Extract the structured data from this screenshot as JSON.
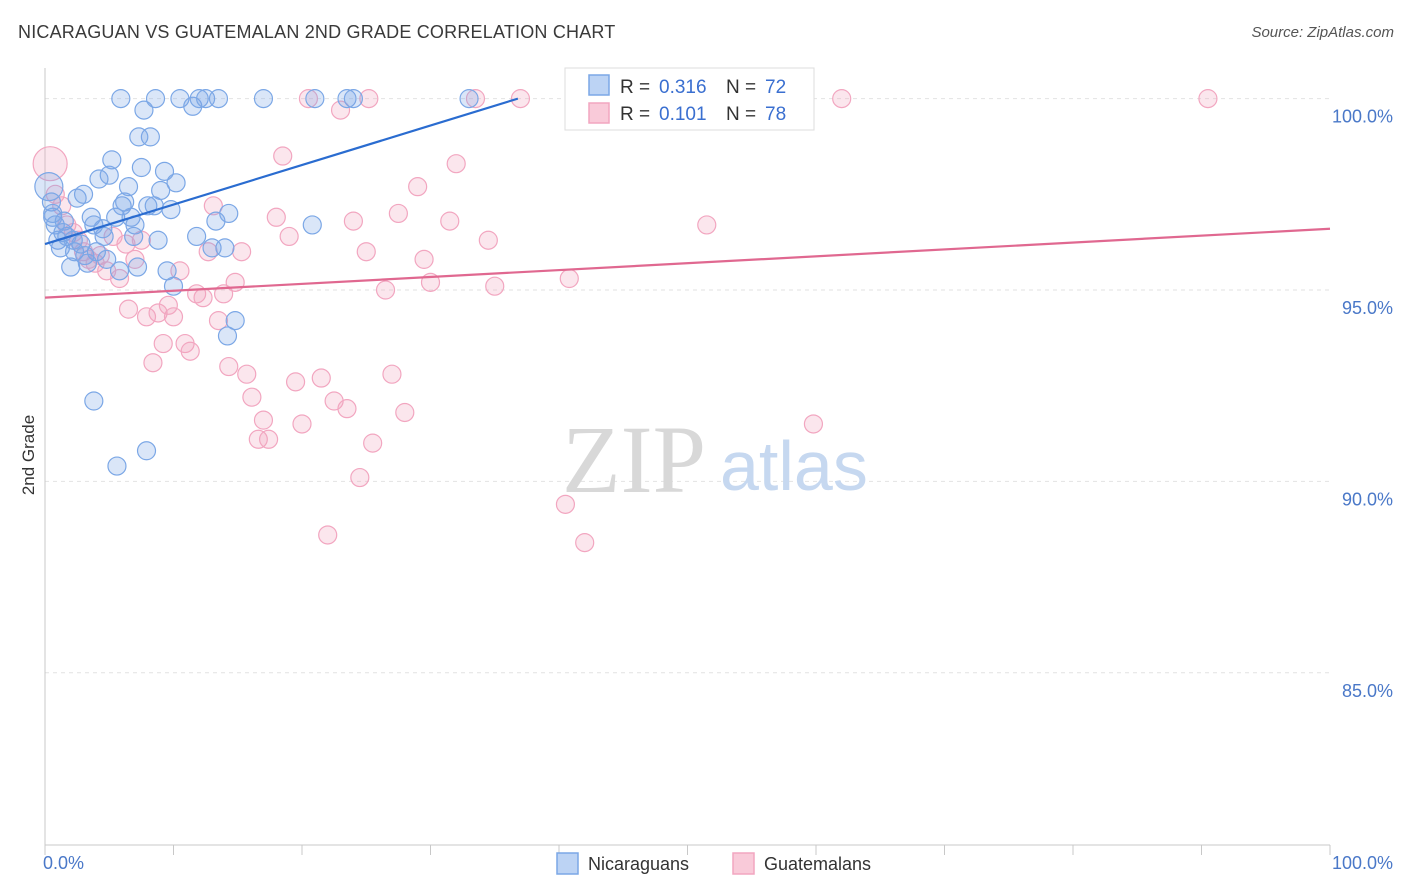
{
  "title": "NICARAGUAN VS GUATEMALAN 2ND GRADE CORRELATION CHART",
  "source": "Source: ZipAtlas.com",
  "watermark": {
    "zip": "ZIP",
    "atlas": "atlas"
  },
  "chart_data": {
    "type": "scatter",
    "xlabel": "",
    "ylabel": "2nd Grade",
    "xlim": [
      0,
      100
    ],
    "ylim": [
      80.5,
      100.8
    ],
    "x_tick_labels": [
      {
        "value": 0,
        "label": "0.0%"
      },
      {
        "value": 100,
        "label": "100.0%"
      }
    ],
    "y_ticks": [
      {
        "value": 100,
        "label": "100.0%"
      },
      {
        "value": 95,
        "label": "95.0%"
      },
      {
        "value": 90,
        "label": "90.0%"
      },
      {
        "value": 85,
        "label": "85.0%"
      }
    ],
    "legend": [
      {
        "r_label": "R =",
        "r_value": "0.316",
        "n_label": "N =",
        "n_value": "72"
      },
      {
        "r_label": "R =",
        "r_value": "0.101",
        "n_label": "N =",
        "n_value": "78"
      }
    ],
    "series": [
      {
        "name": "Nicaraguans",
        "color": "#7ba7e6",
        "line_color": "#2a6cd0",
        "trend": {
          "x": [
            0,
            36.8
          ],
          "y": [
            96.2,
            100.0
          ]
        },
        "points": [
          [
            0.3,
            97.7
          ],
          [
            0.5,
            97.3
          ],
          [
            0.6,
            96.9
          ],
          [
            0.8,
            96.7
          ],
          [
            1.0,
            96.3
          ],
          [
            1.2,
            96.1
          ],
          [
            1.5,
            96.8
          ],
          [
            1.7,
            96.4
          ],
          [
            2.0,
            95.6
          ],
          [
            2.3,
            96.0
          ],
          [
            2.5,
            97.4
          ],
          [
            2.8,
            96.2
          ],
          [
            3.0,
            97.5
          ],
          [
            3.3,
            95.7
          ],
          [
            3.6,
            96.9
          ],
          [
            3.8,
            96.7
          ],
          [
            4.0,
            96.0
          ],
          [
            4.2,
            97.9
          ],
          [
            4.5,
            96.6
          ],
          [
            4.8,
            95.8
          ],
          [
            5.0,
            98.0
          ],
          [
            5.2,
            98.4
          ],
          [
            5.5,
            96.9
          ],
          [
            5.8,
            95.5
          ],
          [
            6.0,
            97.2
          ],
          [
            6.2,
            97.3
          ],
          [
            6.5,
            97.7
          ],
          [
            6.7,
            96.9
          ],
          [
            6.9,
            96.4
          ],
          [
            7.0,
            96.7
          ],
          [
            7.2,
            95.6
          ],
          [
            7.5,
            98.2
          ],
          [
            7.7,
            99.7
          ],
          [
            8.0,
            97.2
          ],
          [
            8.2,
            99.0
          ],
          [
            8.5,
            97.2
          ],
          [
            8.8,
            96.3
          ],
          [
            9.0,
            97.6
          ],
          [
            9.3,
            98.1
          ],
          [
            9.5,
            95.5
          ],
          [
            9.8,
            97.1
          ],
          [
            10.0,
            95.1
          ],
          [
            10.2,
            97.8
          ],
          [
            10.5,
            100.0
          ],
          [
            11.5,
            99.8
          ],
          [
            11.8,
            96.4
          ],
          [
            12.0,
            100.0
          ],
          [
            12.5,
            100.0
          ],
          [
            13.0,
            96.1
          ],
          [
            13.3,
            96.8
          ],
          [
            13.5,
            100.0
          ],
          [
            14.0,
            96.1
          ],
          [
            14.3,
            97.0
          ],
          [
            14.8,
            94.2
          ],
          [
            14.2,
            93.8
          ],
          [
            3.8,
            92.1
          ],
          [
            5.6,
            90.4
          ],
          [
            7.9,
            90.8
          ],
          [
            17.0,
            100.0
          ],
          [
            21.0,
            100.0
          ],
          [
            20.8,
            96.7
          ],
          [
            23.5,
            100.0
          ],
          [
            24.0,
            100.0
          ],
          [
            33.0,
            100.0
          ],
          [
            0.6,
            97.0
          ],
          [
            1.4,
            96.5
          ],
          [
            2.2,
            96.3
          ],
          [
            3.1,
            95.9
          ],
          [
            5.9,
            100.0
          ],
          [
            7.3,
            99.0
          ],
          [
            4.6,
            96.4
          ],
          [
            8.6,
            100.0
          ]
        ]
      },
      {
        "name": "Guatemalans",
        "color": "#f2a6c0",
        "line_color": "#e06890",
        "trend": {
          "x": [
            0,
            100
          ],
          "y": [
            94.8,
            96.6
          ]
        },
        "points": [
          [
            0.4,
            98.3
          ],
          [
            0.8,
            97.5
          ],
          [
            1.3,
            97.2
          ],
          [
            1.7,
            96.7
          ],
          [
            2.2,
            96.5
          ],
          [
            2.6,
            96.3
          ],
          [
            3.0,
            96.0
          ],
          [
            3.4,
            95.8
          ],
          [
            3.9,
            95.7
          ],
          [
            4.3,
            95.9
          ],
          [
            4.8,
            95.5
          ],
          [
            5.3,
            96.4
          ],
          [
            5.8,
            95.3
          ],
          [
            6.3,
            96.2
          ],
          [
            6.5,
            94.5
          ],
          [
            7.0,
            95.8
          ],
          [
            7.5,
            96.3
          ],
          [
            7.9,
            94.3
          ],
          [
            8.4,
            93.1
          ],
          [
            8.8,
            94.4
          ],
          [
            9.2,
            93.6
          ],
          [
            9.6,
            94.6
          ],
          [
            10.0,
            94.3
          ],
          [
            10.5,
            95.5
          ],
          [
            10.9,
            93.6
          ],
          [
            11.3,
            93.4
          ],
          [
            11.8,
            94.9
          ],
          [
            12.3,
            94.8
          ],
          [
            12.7,
            96.0
          ],
          [
            13.1,
            97.2
          ],
          [
            13.5,
            94.2
          ],
          [
            13.9,
            94.9
          ],
          [
            14.3,
            93.0
          ],
          [
            14.8,
            95.2
          ],
          [
            15.3,
            96.0
          ],
          [
            15.7,
            92.8
          ],
          [
            16.1,
            92.2
          ],
          [
            16.6,
            91.1
          ],
          [
            17.0,
            91.6
          ],
          [
            17.4,
            91.1
          ],
          [
            18.0,
            96.9
          ],
          [
            18.5,
            98.5
          ],
          [
            19.0,
            96.4
          ],
          [
            19.5,
            92.6
          ],
          [
            20.0,
            91.5
          ],
          [
            20.5,
            100.0
          ],
          [
            21.5,
            92.7
          ],
          [
            22.0,
            88.6
          ],
          [
            22.5,
            92.1
          ],
          [
            23.0,
            99.7
          ],
          [
            23.5,
            91.9
          ],
          [
            24.0,
            96.8
          ],
          [
            24.5,
            90.1
          ],
          [
            25.0,
            96.0
          ],
          [
            25.5,
            91.0
          ],
          [
            26.5,
            95.0
          ],
          [
            27.0,
            92.8
          ],
          [
            28.0,
            91.8
          ],
          [
            29.0,
            97.7
          ],
          [
            29.5,
            95.8
          ],
          [
            30.0,
            95.2
          ],
          [
            31.5,
            96.8
          ],
          [
            32.0,
            98.3
          ],
          [
            33.5,
            100.0
          ],
          [
            34.5,
            96.3
          ],
          [
            35.0,
            95.1
          ],
          [
            37.0,
            100.0
          ],
          [
            40.5,
            89.4
          ],
          [
            40.8,
            95.3
          ],
          [
            42.0,
            88.4
          ],
          [
            51.5,
            96.7
          ],
          [
            55.0,
            100.0
          ],
          [
            57.5,
            100.0
          ],
          [
            59.8,
            91.5
          ],
          [
            62.0,
            100.0
          ],
          [
            90.5,
            100.0
          ],
          [
            25.2,
            100.0
          ],
          [
            27.5,
            97.0
          ]
        ]
      }
    ]
  }
}
